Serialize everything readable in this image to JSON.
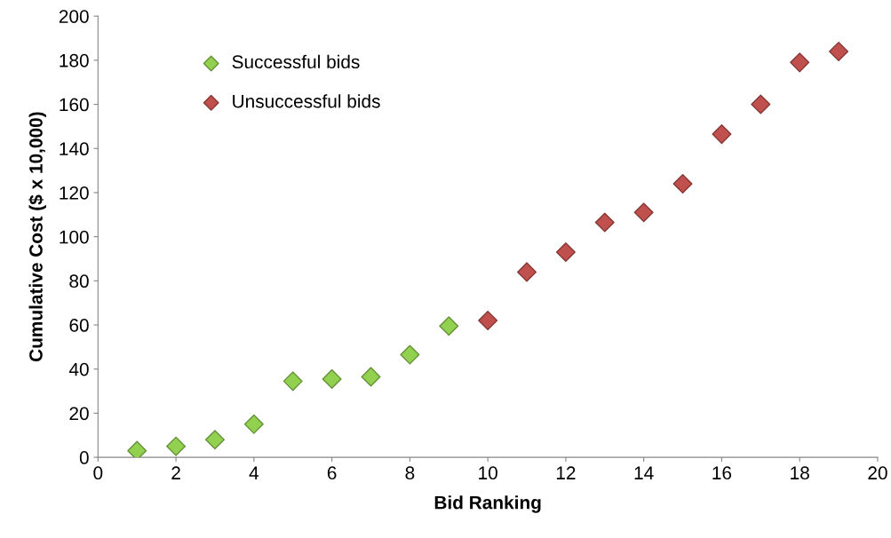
{
  "chart_data": {
    "type": "scatter",
    "xlabel": "Bid Ranking",
    "ylabel": "Cumulative Cost ($ x 10,000)",
    "xlim": [
      0,
      20
    ],
    "xticks": [
      0,
      2,
      4,
      6,
      8,
      10,
      12,
      14,
      16,
      18,
      20
    ],
    "ylim": [
      0,
      200
    ],
    "yticks": [
      0,
      20,
      40,
      60,
      80,
      100,
      120,
      140,
      160,
      180,
      200
    ],
    "grid": false,
    "legend": "top left",
    "marker": "diamond",
    "series": [
      {
        "name": "Successful bids",
        "color": "#92d050",
        "x": [
          1,
          2,
          3,
          4,
          5,
          6,
          7,
          8,
          9
        ],
        "values": [
          3,
          5,
          8,
          15,
          34.5,
          35.5,
          36.5,
          46.5,
          59.5
        ]
      },
      {
        "name": "Unsuccessful bids",
        "color": "#c0504d",
        "x": [
          10,
          11,
          12,
          13,
          14,
          15,
          16,
          17,
          18,
          19
        ],
        "values": [
          62,
          84,
          93,
          106.5,
          111,
          124,
          146.5,
          160,
          179,
          184
        ]
      }
    ]
  }
}
